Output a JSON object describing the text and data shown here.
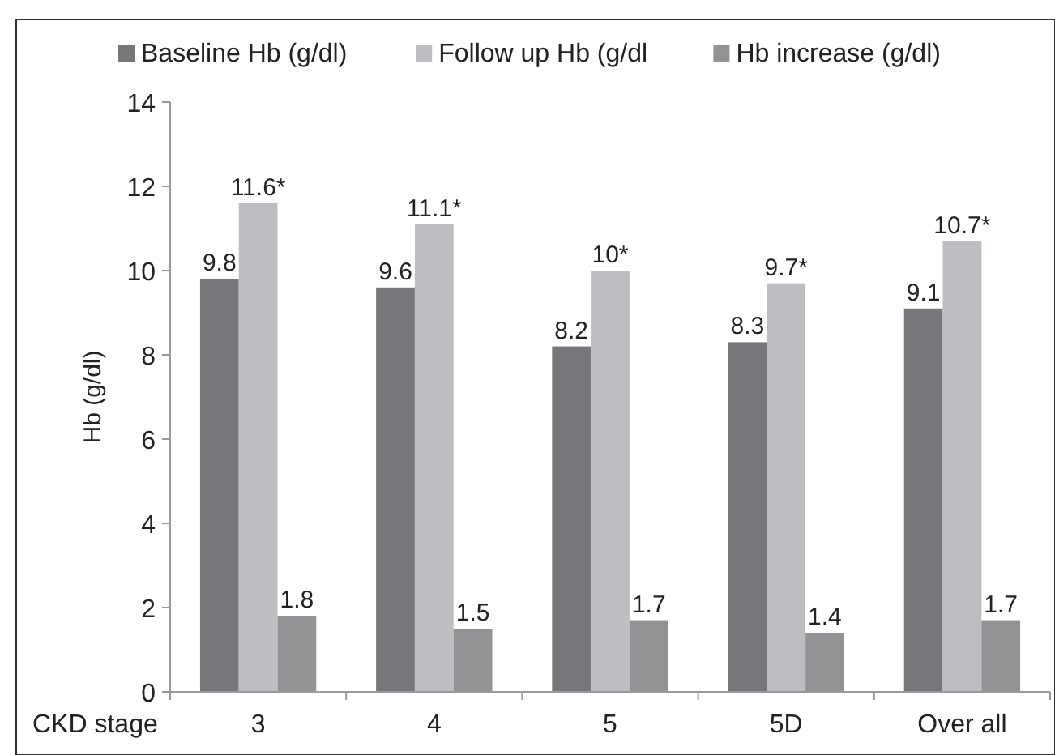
{
  "chart_data": {
    "type": "bar",
    "ylabel": "Hb (g/dl)",
    "xlabel": "CKD stage",
    "categories": [
      "3",
      "4",
      "5",
      "5D",
      "Over all"
    ],
    "series": [
      {
        "name": "Baseline Hb (g/dl)",
        "color": "#77777b",
        "values": [
          9.8,
          9.6,
          8.2,
          8.3,
          9.1
        ],
        "value_labels": [
          "9.8",
          "9.6",
          "8.2",
          "8.3",
          "9.1"
        ]
      },
      {
        "name": "Follow up Hb (g/dl",
        "color": "#bdbec2",
        "values": [
          11.6,
          11.1,
          10,
          9.7,
          10.7
        ],
        "value_labels": [
          "11.6*",
          "11.1*",
          "10*",
          "9.7*",
          "10.7*"
        ]
      },
      {
        "name": "Hb increase (g/dl)",
        "color": "#939396",
        "values": [
          1.8,
          1.5,
          1.7,
          1.4,
          1.7
        ],
        "value_labels": [
          "1.8",
          "1.5",
          "1.7",
          "1.4",
          "1.7"
        ]
      }
    ],
    "ylim": [
      0,
      14
    ],
    "yticks": [
      0,
      2,
      4,
      6,
      8,
      10,
      12,
      14
    ],
    "grid": false,
    "legend": "top"
  }
}
